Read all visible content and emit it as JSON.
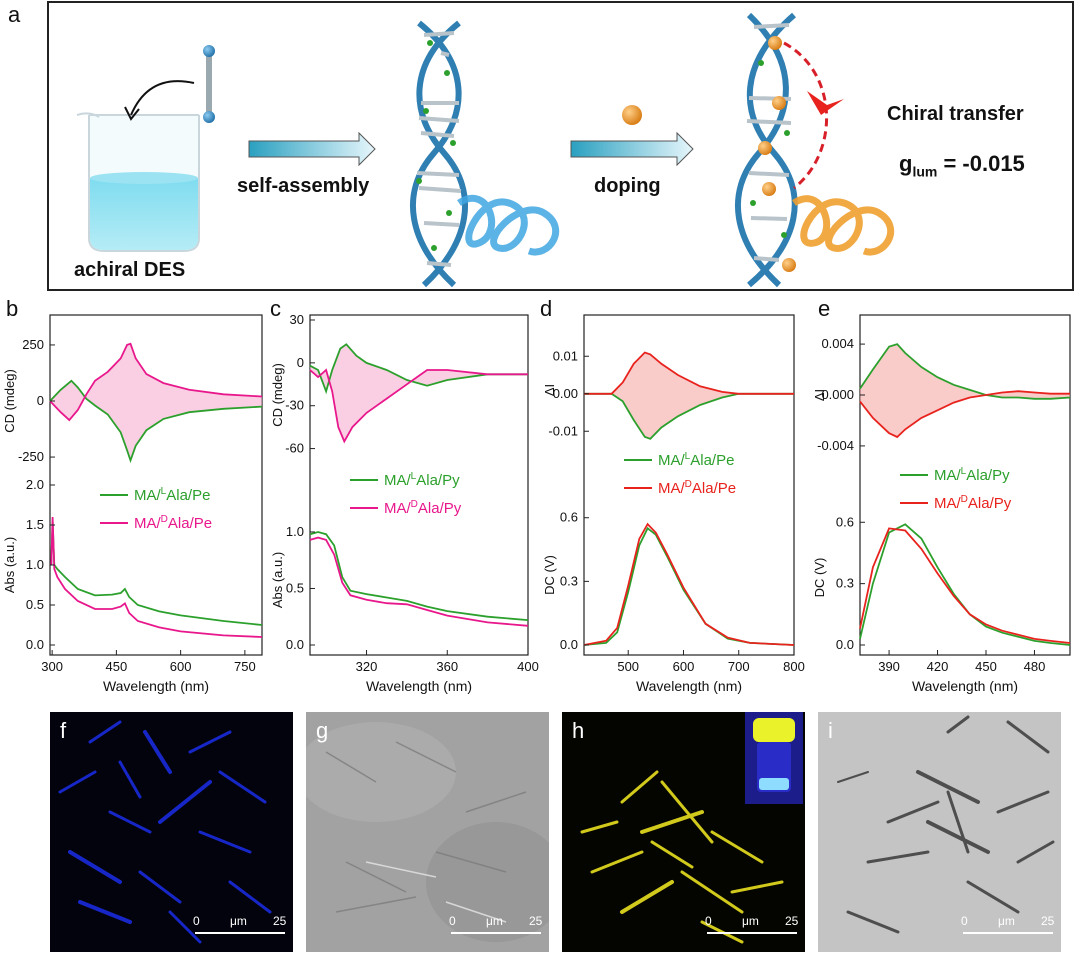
{
  "panels": {
    "a": {
      "label": "a",
      "achiral_text": "achiral DES",
      "step1_text": "self-assembly",
      "step2_text": "doping",
      "chiral_text": "Chiral transfer",
      "glum_symbol": "g",
      "glum_sub": "lum",
      "glum_value": " = -0.015"
    },
    "b": {
      "label": "b"
    },
    "c": {
      "label": "c"
    },
    "d": {
      "label": "d"
    },
    "e": {
      "label": "e"
    },
    "f": {
      "label": "f",
      "scale_left": "0",
      "scale_unit": "μm",
      "scale_right": "25"
    },
    "g": {
      "label": "g",
      "scale_left": "0",
      "scale_unit": "μm",
      "scale_right": "25"
    },
    "h": {
      "label": "h",
      "scale_left": "0",
      "scale_unit": "μm",
      "scale_right": "25"
    },
    "i": {
      "label": "i",
      "scale_left": "0",
      "scale_unit": "μm",
      "scale_right": "25"
    }
  },
  "colors": {
    "green": "#2ca02c",
    "magenta": "#e8188c",
    "red": "#e8231e",
    "pink_fill": "#f7a8cc",
    "red_fill": "#f4a19c",
    "arrow_teal": "#2aa0c0",
    "orange": "#f0a030"
  },
  "chart_data": [
    {
      "panel": "b",
      "type": "line",
      "xlabel": "Wavelength (nm)",
      "top": {
        "ylabel": "CD (mdeg)",
        "yticks": [
          "250",
          "0",
          "-250"
        ],
        "ylim": [
          -330,
          330
        ]
      },
      "bottom": {
        "ylabel": "Abs (a.u.)",
        "yticks": [
          "2.0",
          "1.5",
          "1.0",
          "0.5",
          "0.0"
        ],
        "ylim": [
          0,
          2.0
        ]
      },
      "xticks": [
        "300",
        "450",
        "600",
        "750"
      ],
      "xlim": [
        295,
        790
      ],
      "legend": [
        "MA/",
        "L",
        "Ala/Pe",
        "MA/",
        "D",
        "Ala/Pe"
      ],
      "series": [
        {
          "name": "MA/LAla/Pe CD",
          "color": "green",
          "x": [
            295,
            320,
            345,
            360,
            380,
            400,
            430,
            460,
            475,
            483,
            495,
            520,
            560,
            620,
            700,
            790
          ],
          "y": [
            0,
            50,
            90,
            60,
            10,
            -20,
            -60,
            -140,
            -220,
            -265,
            -200,
            -130,
            -80,
            -50,
            -35,
            -25
          ]
        },
        {
          "name": "MA/DAla/Pe CD",
          "color": "magenta",
          "x": [
            295,
            320,
            340,
            360,
            380,
            400,
            430,
            460,
            475,
            483,
            495,
            520,
            560,
            620,
            700,
            790
          ],
          "y": [
            0,
            -50,
            -85,
            -40,
            30,
            90,
            130,
            190,
            250,
            255,
            190,
            120,
            80,
            50,
            30,
            20
          ]
        },
        {
          "name": "MA/LAla/Pe Abs",
          "color": "green",
          "x": [
            298,
            301,
            305,
            312,
            330,
            360,
            400,
            440,
            460,
            470,
            480,
            500,
            550,
            600,
            700,
            790
          ],
          "y": [
            1.0,
            1.55,
            1.0,
            0.95,
            0.85,
            0.7,
            0.62,
            0.63,
            0.65,
            0.7,
            0.6,
            0.5,
            0.42,
            0.37,
            0.3,
            0.25
          ]
        },
        {
          "name": "MA/DAla/Pe Abs",
          "color": "magenta",
          "x": [
            298,
            301,
            305,
            312,
            330,
            360,
            400,
            440,
            460,
            470,
            480,
            500,
            550,
            600,
            700,
            790
          ],
          "y": [
            1.0,
            1.6,
            0.95,
            0.85,
            0.7,
            0.55,
            0.45,
            0.45,
            0.48,
            0.52,
            0.4,
            0.3,
            0.22,
            0.17,
            0.12,
            0.1
          ]
        }
      ]
    },
    {
      "panel": "c",
      "type": "line",
      "xlabel": "Wavelength (nm)",
      "top": {
        "ylabel": "CD (mdeg)",
        "yticks": [
          "30",
          "0",
          "-30",
          "-60"
        ],
        "ylim": [
          -75,
          30
        ]
      },
      "bottom": {
        "ylabel": "Abs (a.u.)",
        "yticks": [
          "1.0",
          "0.5",
          "0.0"
        ],
        "ylim": [
          0,
          1.15
        ]
      },
      "xticks": [
        "320",
        "360",
        "400"
      ],
      "xlim": [
        292,
        400
      ],
      "legend": [
        "MA/",
        "L",
        "Ala/Py",
        "MA/",
        "D",
        "Ala/Py"
      ],
      "series": [
        {
          "name": "MA/LAla/Py CD",
          "color": "green",
          "x": [
            292,
            296,
            300,
            303,
            307,
            310,
            315,
            320,
            330,
            340,
            350,
            360,
            380,
            400
          ],
          "y": [
            -2,
            -5,
            -20,
            -5,
            10,
            13,
            5,
            0,
            -5,
            -12,
            -16,
            -12,
            -8,
            -8
          ]
        },
        {
          "name": "MA/DAla/Py CD",
          "color": "magenta",
          "x": [
            292,
            296,
            300,
            303,
            306,
            309,
            313,
            320,
            330,
            340,
            350,
            360,
            380,
            400
          ],
          "y": [
            -5,
            -10,
            -5,
            -20,
            -45,
            -55,
            -45,
            -35,
            -25,
            -15,
            -5,
            -5,
            -8,
            -8
          ]
        },
        {
          "name": "MA/LAla/Py Abs",
          "color": "green",
          "x": [
            292,
            296,
            300,
            304,
            308,
            312,
            320,
            330,
            340,
            350,
            360,
            380,
            400
          ],
          "y": [
            0.98,
            1.0,
            0.98,
            0.88,
            0.6,
            0.48,
            0.45,
            0.42,
            0.39,
            0.34,
            0.3,
            0.25,
            0.22
          ]
        },
        {
          "name": "MA/DAla/Py Abs",
          "color": "magenta",
          "x": [
            292,
            296,
            300,
            304,
            308,
            312,
            320,
            330,
            340,
            350,
            360,
            380,
            400
          ],
          "y": [
            0.93,
            0.95,
            0.93,
            0.8,
            0.55,
            0.44,
            0.4,
            0.37,
            0.36,
            0.31,
            0.26,
            0.2,
            0.17
          ]
        }
      ]
    },
    {
      "panel": "d",
      "type": "line",
      "xlabel": "Wavelength (nm)",
      "top": {
        "ylabel": "ΔI",
        "yticks": [
          "0.01",
          "0.00",
          "-0.01"
        ],
        "ylim": [
          -0.015,
          0.017
        ]
      },
      "bottom": {
        "ylabel": "DC (V)",
        "yticks": [
          "0.6",
          "0.3",
          "0.0"
        ],
        "ylim": [
          0,
          0.66
        ]
      },
      "xticks": [
        "500",
        "600",
        "700",
        "800"
      ],
      "xlim": [
        420,
        800
      ],
      "legend": [
        "MA/",
        "L",
        "Ala/Pe",
        "MA/",
        "D",
        "Ala/Pe"
      ],
      "series": [
        {
          "name": "MA/LAla/Pe ΔI",
          "color": "green",
          "x": [
            420,
            470,
            490,
            510,
            530,
            540,
            560,
            590,
            630,
            670,
            700,
            800
          ],
          "y": [
            0,
            0,
            -0.002,
            -0.007,
            -0.0115,
            -0.012,
            -0.009,
            -0.006,
            -0.003,
            -0.001,
            0,
            0
          ]
        },
        {
          "name": "MA/DAla/Pe ΔI",
          "color": "red",
          "x": [
            420,
            470,
            490,
            510,
            530,
            540,
            560,
            590,
            630,
            670,
            700,
            800
          ],
          "y": [
            0,
            0,
            0.003,
            0.008,
            0.011,
            0.0105,
            0.008,
            0.005,
            0.002,
            0.0005,
            0,
            0
          ]
        },
        {
          "name": "MA/LAla/Pe DC",
          "color": "green",
          "x": [
            420,
            460,
            480,
            500,
            520,
            535,
            550,
            570,
            600,
            640,
            680,
            720,
            800
          ],
          "y": [
            0,
            0.01,
            0.06,
            0.25,
            0.47,
            0.55,
            0.52,
            0.42,
            0.26,
            0.1,
            0.03,
            0.01,
            0
          ]
        },
        {
          "name": "MA/DAla/Pe DC",
          "color": "red",
          "x": [
            420,
            460,
            480,
            500,
            520,
            535,
            550,
            570,
            600,
            640,
            680,
            720,
            800
          ],
          "y": [
            0,
            0.02,
            0.08,
            0.28,
            0.5,
            0.57,
            0.53,
            0.43,
            0.27,
            0.1,
            0.035,
            0.01,
            0
          ]
        }
      ]
    },
    {
      "panel": "e",
      "type": "line",
      "xlabel": "Wavelength (nm)",
      "top": {
        "ylabel": "ΔI",
        "yticks": [
          "0.004",
          "0.000",
          "-0.004"
        ],
        "ylim": [
          -0.0055,
          0.0055
        ]
      },
      "bottom": {
        "ylabel": "DC (V)",
        "yticks": [
          "0.6",
          "0.3",
          "0.0"
        ],
        "ylim": [
          0,
          0.66
        ]
      },
      "xticks": [
        "390",
        "420",
        "450",
        "480"
      ],
      "xlim": [
        372,
        502
      ],
      "legend": [
        "MA/",
        "L",
        "Ala/Py",
        "MA/",
        "D",
        "Ala/Py"
      ],
      "series": [
        {
          "name": "MA/LAla/Py ΔI",
          "color": "green",
          "x": [
            372,
            380,
            390,
            395,
            400,
            410,
            420,
            430,
            440,
            450,
            460,
            470,
            480,
            490,
            502
          ],
          "y": [
            0.0005,
            0.002,
            0.0038,
            0.004,
            0.0033,
            0.0022,
            0.0014,
            0.0008,
            0.0004,
            0.0,
            -0.0002,
            -0.0002,
            -0.0003,
            -0.0003,
            -0.0002
          ]
        },
        {
          "name": "MA/DAla/Py ΔI",
          "color": "red",
          "x": [
            372,
            380,
            390,
            395,
            400,
            410,
            420,
            430,
            440,
            450,
            460,
            470,
            480,
            490,
            502
          ],
          "y": [
            -0.0005,
            -0.0018,
            -0.003,
            -0.0033,
            -0.0027,
            -0.0018,
            -0.0012,
            -0.0006,
            -0.0002,
            0.0,
            0.0002,
            0.0003,
            0.0002,
            0.0001,
            0.0001
          ]
        },
        {
          "name": "MA/LAla/Py DC",
          "color": "green",
          "x": [
            372,
            380,
            390,
            400,
            410,
            420,
            430,
            440,
            450,
            460,
            470,
            480,
            490,
            502
          ],
          "y": [
            0.03,
            0.3,
            0.55,
            0.59,
            0.52,
            0.38,
            0.25,
            0.15,
            0.09,
            0.06,
            0.04,
            0.02,
            0.01,
            0.0
          ]
        },
        {
          "name": "MA/DAla/Py DC",
          "color": "red",
          "x": [
            372,
            380,
            390,
            400,
            410,
            420,
            430,
            440,
            450,
            460,
            470,
            480,
            490,
            502
          ],
          "y": [
            0.08,
            0.38,
            0.57,
            0.56,
            0.47,
            0.35,
            0.24,
            0.15,
            0.1,
            0.07,
            0.05,
            0.03,
            0.02,
            0.01
          ]
        }
      ]
    }
  ]
}
